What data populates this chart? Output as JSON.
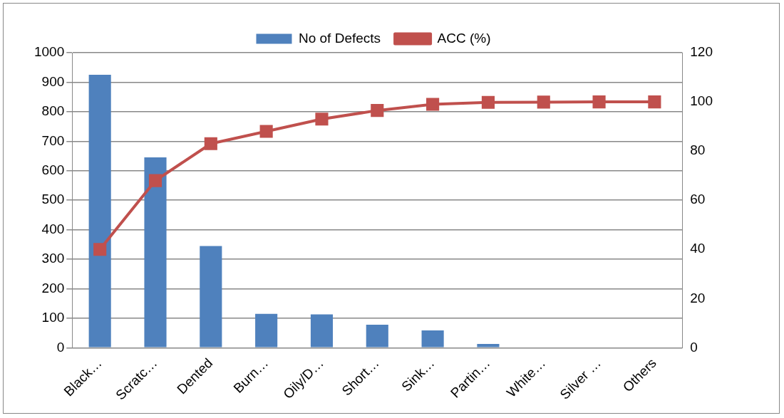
{
  "chart_data": {
    "type": "bar",
    "categories": [
      "Black…",
      "Scratc…",
      "Dented",
      "Burn…",
      "Oily/D…",
      "Short…",
      "Sink…",
      "Partin…",
      "White…",
      "Silver …",
      "Others"
    ],
    "series": [
      {
        "name": "No of Defects",
        "color": "#4f81bd",
        "values": [
          925,
          645,
          345,
          115,
          113,
          78,
          59,
          13,
          2,
          2,
          0
        ]
      },
      {
        "name": "ACC (%)",
        "type": "line",
        "axis": "y2",
        "color": "#c0504d",
        "values": [
          40,
          68,
          83,
          88,
          93,
          96.5,
          99,
          99.8,
          99.9,
          100,
          100
        ]
      }
    ],
    "ylim": [
      0,
      1000
    ],
    "yticks": [
      0,
      100,
      200,
      300,
      400,
      500,
      600,
      700,
      800,
      900,
      1000
    ],
    "y2lim": [
      0,
      120
    ],
    "y2ticks": [
      0,
      20,
      40,
      60,
      80,
      100,
      120
    ],
    "grid": "y",
    "legend": "top",
    "marker": "square",
    "line_style": "solid"
  }
}
